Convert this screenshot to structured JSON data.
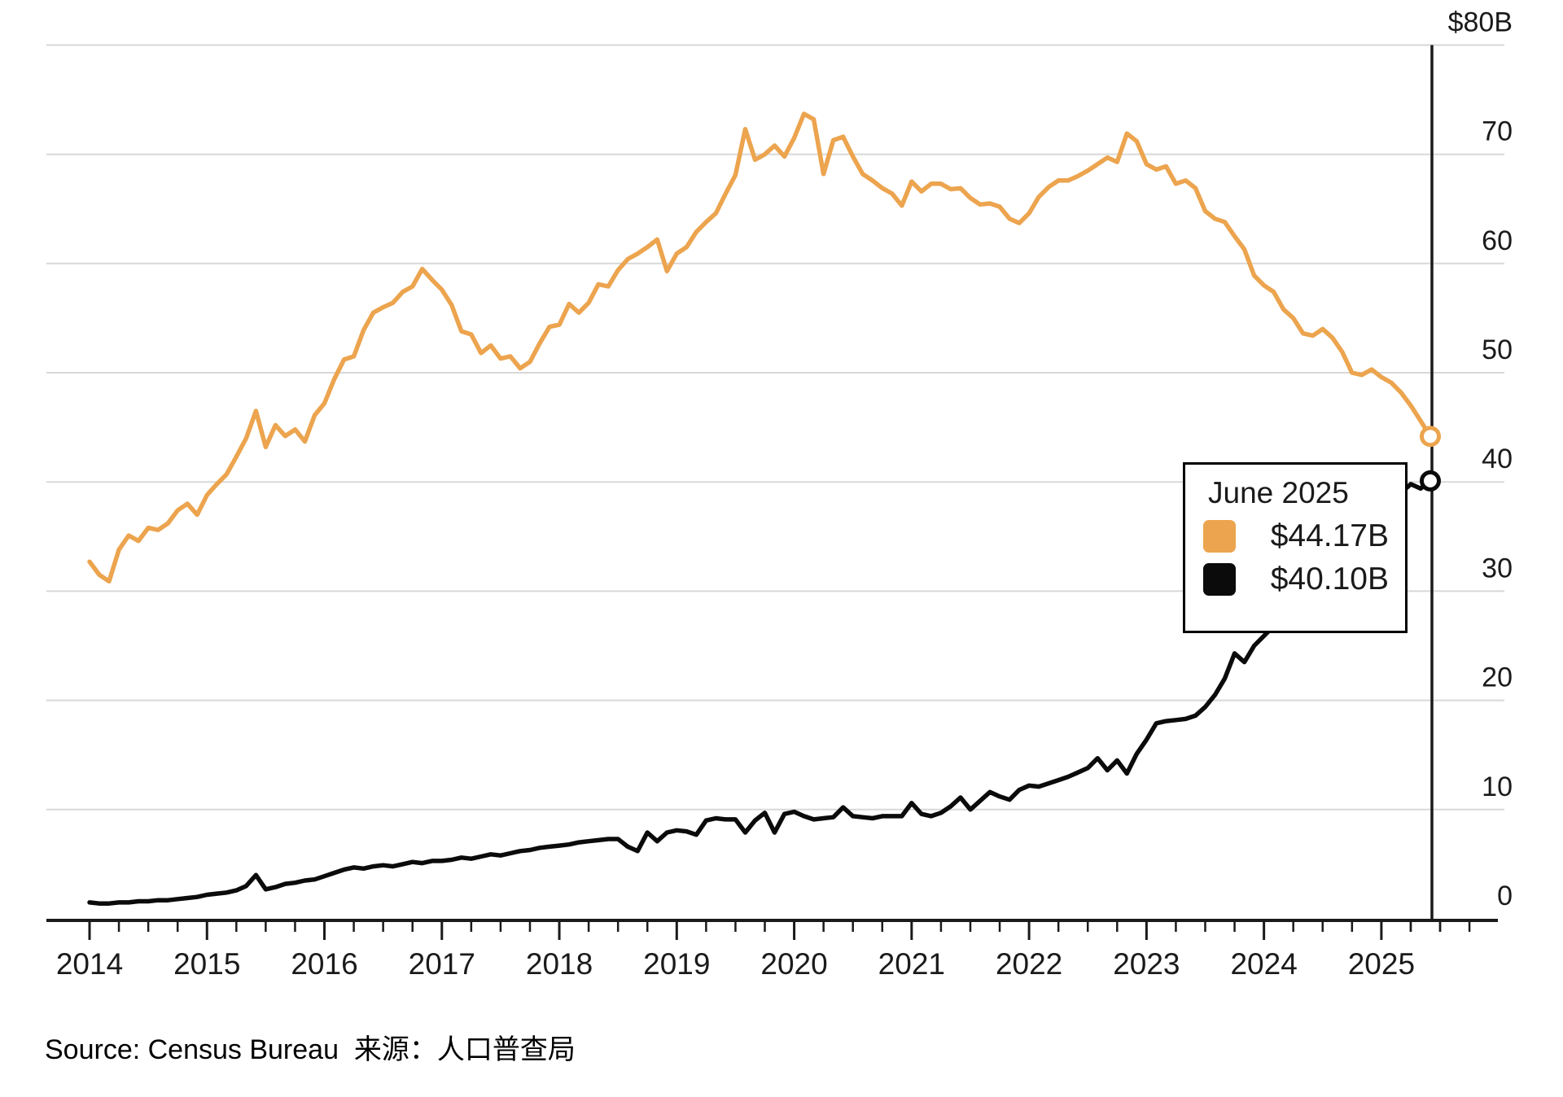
{
  "chart_data": {
    "type": "line",
    "title": "",
    "x_start": "2014-01",
    "x_end": "2025-06",
    "x_tick_labels": [
      "2014",
      "2015",
      "2016",
      "2017",
      "2018",
      "2019",
      "2020",
      "2021",
      "2022",
      "2023",
      "2024",
      "2025"
    ],
    "x_minor_ticks": "quarterly",
    "y_axis": {
      "ylim": [
        0,
        80
      ],
      "tick_labels_top_to_bottom": [
        "$80B",
        "70",
        "60",
        "50",
        "40",
        "30",
        "20",
        "10",
        "0"
      ],
      "tick_values": [
        80,
        70,
        60,
        50,
        40,
        30,
        20,
        10,
        0
      ],
      "gridlines": true,
      "labels_side": "right"
    },
    "colors": {
      "orange_series": "#ECA44E",
      "black_series": "#0B0B0B",
      "gridline": "#D8D8D8",
      "axis": "#1A1A1A",
      "background": "#FFFFFF"
    },
    "series": [
      {
        "name": "orange-series",
        "color": "#ECA44E",
        "end_label": "$44.17B",
        "values": [
          32.7,
          31.5,
          30.9,
          33.8,
          35.1,
          34.6,
          35.8,
          35.6,
          36.2,
          37.4,
          38.0,
          37.0,
          38.8,
          39.8,
          40.7,
          42.3,
          44.0,
          46.5,
          43.2,
          45.2,
          44.2,
          44.8,
          43.7,
          46.1,
          47.2,
          49.4,
          51.2,
          51.5,
          53.9,
          55.5,
          56.0,
          56.4,
          57.4,
          57.9,
          59.5,
          58.5,
          57.6,
          56.2,
          53.8,
          53.5,
          51.8,
          52.5,
          51.3,
          51.5,
          50.4,
          51.0,
          52.7,
          54.2,
          54.4,
          56.3,
          55.5,
          56.4,
          58.1,
          57.9,
          59.4,
          60.4,
          60.9,
          61.5,
          62.2,
          59.3,
          60.9,
          61.5,
          62.9,
          63.8,
          64.6,
          66.4,
          68.1,
          72.3,
          69.5,
          70.0,
          70.8,
          69.8,
          71.5,
          73.7,
          73.2,
          68.2,
          71.3,
          71.6,
          69.8,
          68.2,
          67.6,
          66.9,
          66.4,
          65.3,
          67.5,
          66.6,
          67.3,
          67.3,
          66.8,
          66.9,
          66.0,
          65.4,
          65.5,
          65.2,
          64.1,
          63.7,
          64.6,
          66.1,
          67.0,
          67.6,
          67.6,
          68.0,
          68.5,
          69.1,
          69.7,
          69.3,
          71.9,
          71.2,
          69.1,
          68.6,
          68.9,
          67.3,
          67.6,
          66.9,
          64.8,
          64.1,
          63.8,
          62.5,
          61.3,
          58.9,
          58.0,
          57.4,
          55.8,
          55.0,
          53.6,
          53.4,
          54.0,
          53.2,
          51.9,
          50.0,
          49.8,
          50.3,
          49.6,
          49.1,
          48.2,
          47.0,
          45.6,
          44.17
        ]
      },
      {
        "name": "black-series",
        "color": "#0B0B0B",
        "end_label": "$40.10B",
        "values": [
          1.5,
          1.4,
          1.4,
          1.5,
          1.5,
          1.6,
          1.6,
          1.7,
          1.7,
          1.8,
          1.9,
          2.0,
          2.2,
          2.3,
          2.4,
          2.6,
          3.0,
          4.0,
          2.7,
          2.9,
          3.2,
          3.3,
          3.5,
          3.6,
          3.9,
          4.2,
          4.5,
          4.7,
          4.6,
          4.8,
          4.9,
          4.8,
          5.0,
          5.2,
          5.1,
          5.3,
          5.3,
          5.4,
          5.6,
          5.5,
          5.7,
          5.9,
          5.8,
          6.0,
          6.2,
          6.3,
          6.5,
          6.6,
          6.7,
          6.8,
          7.0,
          7.1,
          7.2,
          7.3,
          7.3,
          6.6,
          6.2,
          7.9,
          7.1,
          7.9,
          8.1,
          8.0,
          7.7,
          9.0,
          9.2,
          9.1,
          9.1,
          7.9,
          9.0,
          9.7,
          7.9,
          9.6,
          9.8,
          9.4,
          9.1,
          9.2,
          9.3,
          10.2,
          9.4,
          9.3,
          9.2,
          9.4,
          9.4,
          9.4,
          10.6,
          9.6,
          9.4,
          9.7,
          10.3,
          11.1,
          10.0,
          10.8,
          11.6,
          11.2,
          10.9,
          11.8,
          12.2,
          12.1,
          12.4,
          12.7,
          13.0,
          13.4,
          13.8,
          14.7,
          13.6,
          14.5,
          13.3,
          15.1,
          16.4,
          17.9,
          18.1,
          18.2,
          18.3,
          18.6,
          19.4,
          20.5,
          22.0,
          24.3,
          23.5,
          25.0,
          25.9,
          26.8,
          27.9,
          28.7,
          29.8,
          31.0,
          32.0,
          33.2,
          34.5,
          35.6,
          36.8,
          37.8,
          38.6,
          39.2,
          39.0,
          39.8,
          39.4,
          40.1
        ]
      }
    ],
    "annotation": {
      "title": "June 2025",
      "entries": [
        {
          "series": "orange-series",
          "color": "#ECA44E",
          "label": "$44.17B"
        },
        {
          "series": "black-series",
          "color": "#0B0B0B",
          "label": "$40.10B"
        }
      ]
    }
  },
  "source": {
    "text": "Source: Census Bureau  来源：人口普查局"
  }
}
